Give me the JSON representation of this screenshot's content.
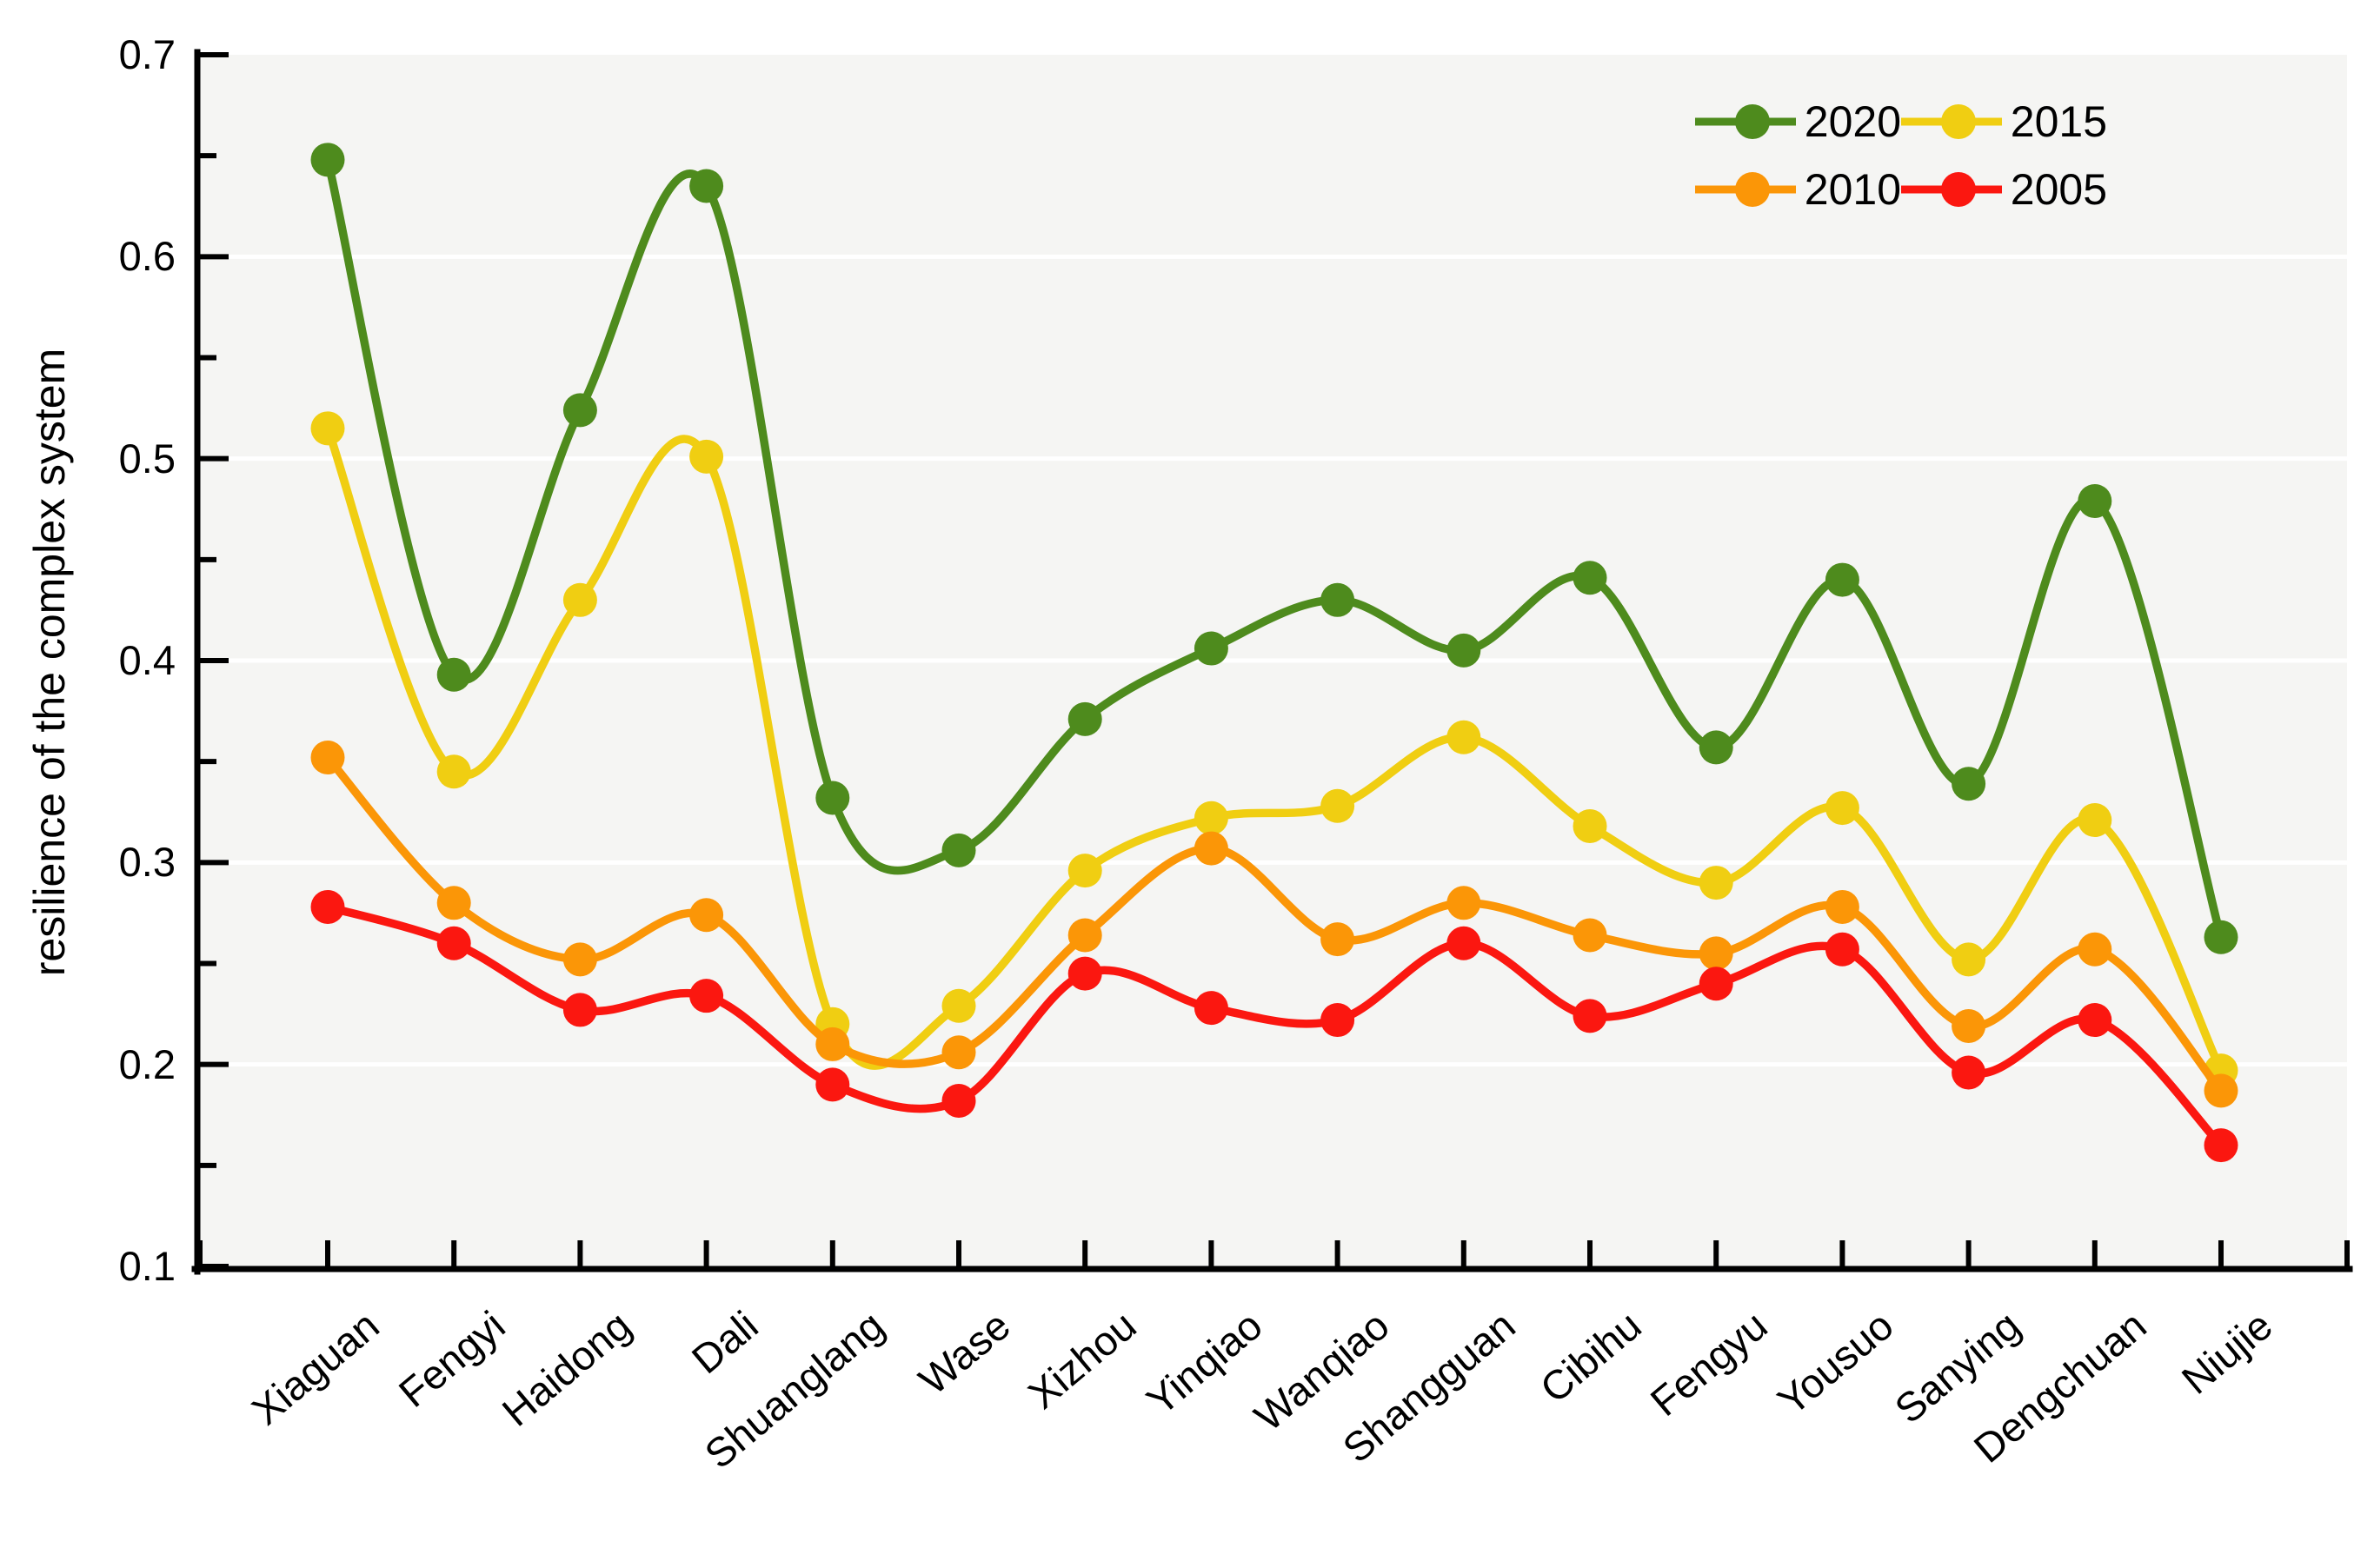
{
  "chart_data": {
    "type": "line",
    "title": "",
    "xlabel": "",
    "ylabel": "resilience of the complex system",
    "ylim": [
      0.1,
      0.7
    ],
    "yticks": [
      0.1,
      0.2,
      0.3,
      0.4,
      0.5,
      0.6,
      0.7
    ],
    "yticks_minor": [
      0.15,
      0.25,
      0.35,
      0.45,
      0.55,
      0.65
    ],
    "grid": "horizontal major gridlines, white on light-gray plot background",
    "legend_position": "top-right inside plot, 2 columns",
    "categories": [
      "Xiaguan",
      "Fengyi",
      "Haidong",
      "Dali",
      "Shuanglang",
      "Wase",
      "Xizhou",
      "Yinqiao",
      "Wanqiao",
      "Shangguan",
      "Cibihu",
      "Fengyu",
      "Yousuo",
      "Sanying",
      "Dengchuan",
      "Niujie"
    ],
    "series": [
      {
        "name": "2020",
        "color": "#4e8b1d",
        "values": [
          0.648,
          0.393,
          0.524,
          0.635,
          0.332,
          0.306,
          0.371,
          0.406,
          0.43,
          0.405,
          0.441,
          0.357,
          0.44,
          0.339,
          0.479,
          0.263
        ]
      },
      {
        "name": "2015",
        "color": "#f0ce12",
        "values": [
          0.515,
          0.345,
          0.43,
          0.501,
          0.22,
          0.229,
          0.296,
          0.322,
          0.328,
          0.362,
          0.318,
          0.29,
          0.327,
          0.252,
          0.321,
          0.197
        ]
      },
      {
        "name": "2010",
        "color": "#fb9607",
        "values": [
          0.352,
          0.28,
          0.252,
          0.274,
          0.21,
          0.206,
          0.264,
          0.307,
          0.262,
          0.28,
          0.264,
          0.255,
          0.278,
          0.219,
          0.257,
          0.187
        ]
      },
      {
        "name": "2005",
        "color": "#fb1710",
        "values": [
          0.278,
          0.26,
          0.227,
          0.234,
          0.19,
          0.182,
          0.245,
          0.228,
          0.222,
          0.26,
          0.224,
          0.24,
          0.257,
          0.196,
          0.222,
          0.16
        ]
      }
    ],
    "colors": {
      "plot_background": "#f5f5f3",
      "gridline": "#ffffff",
      "axis": "#000000",
      "text": "#000000"
    }
  }
}
